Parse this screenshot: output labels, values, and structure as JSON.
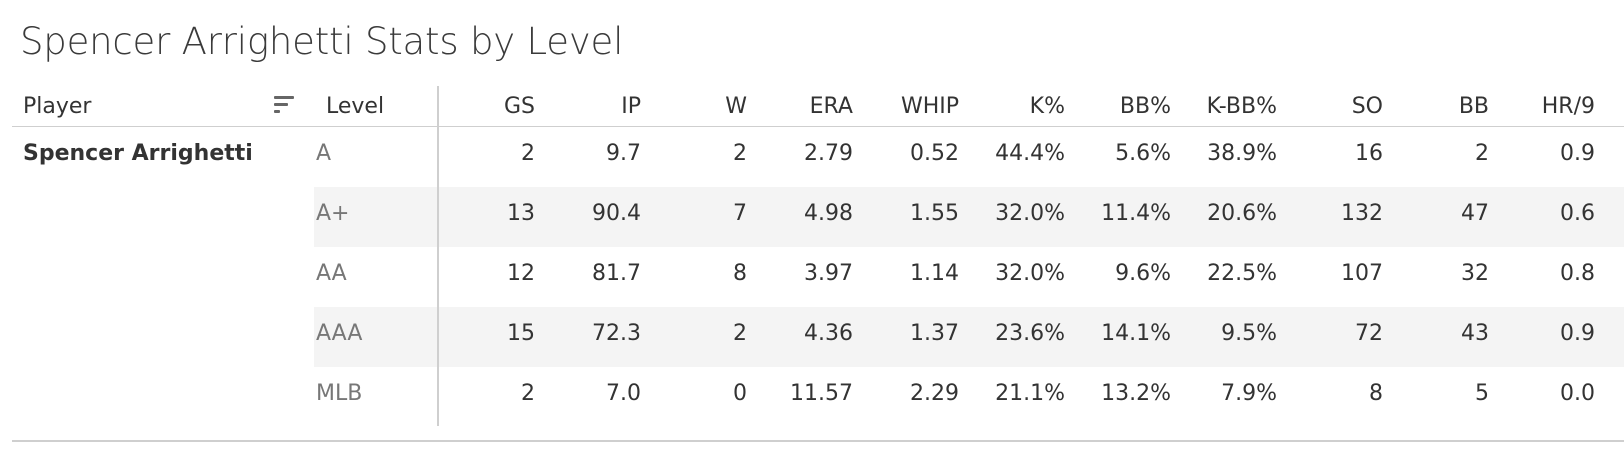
{
  "title": "Spencer Arrighetti Stats by Level",
  "table": {
    "headers": {
      "player": "Player",
      "level": "Level",
      "gs": "GS",
      "ip": "IP",
      "w": "W",
      "era": "ERA",
      "whip": "WHIP",
      "k_pct": "K%",
      "bb_pct": "BB%",
      "k_bb_pct": "K-BB%",
      "so": "SO",
      "bb": "BB",
      "hr9": "HR/9"
    },
    "player": "Spencer Arrighetti",
    "rows": [
      {
        "level": "A",
        "gs": "2",
        "ip": "9.7",
        "w": "2",
        "era": "2.79",
        "whip": "0.52",
        "k_pct": "44.4%",
        "bb_pct": "5.6%",
        "k_bb_pct": "38.9%",
        "so": "16",
        "bb": "2",
        "hr9": "0.9"
      },
      {
        "level": "A+",
        "gs": "13",
        "ip": "90.4",
        "w": "7",
        "era": "4.98",
        "whip": "1.55",
        "k_pct": "32.0%",
        "bb_pct": "11.4%",
        "k_bb_pct": "20.6%",
        "so": "132",
        "bb": "47",
        "hr9": "0.6"
      },
      {
        "level": "AA",
        "gs": "12",
        "ip": "81.7",
        "w": "8",
        "era": "3.97",
        "whip": "1.14",
        "k_pct": "32.0%",
        "bb_pct": "9.6%",
        "k_bb_pct": "22.5%",
        "so": "107",
        "bb": "32",
        "hr9": "0.8"
      },
      {
        "level": "AAA",
        "gs": "15",
        "ip": "72.3",
        "w": "2",
        "era": "4.36",
        "whip": "1.37",
        "k_pct": "23.6%",
        "bb_pct": "14.1%",
        "k_bb_pct": "9.5%",
        "so": "72",
        "bb": "43",
        "hr9": "0.9"
      },
      {
        "level": "MLB",
        "gs": "2",
        "ip": "7.0",
        "w": "0",
        "era": "11.57",
        "whip": "2.29",
        "k_pct": "21.1%",
        "bb_pct": "13.2%",
        "k_bb_pct": "7.9%",
        "so": "8",
        "bb": "5",
        "hr9": "0.0"
      }
    ],
    "sort_icon": "sort-descending-icon"
  }
}
